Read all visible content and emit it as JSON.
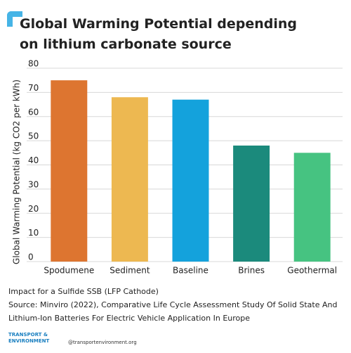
{
  "chart_data": {
    "type": "bar",
    "title": "Global Warming Potential depending on lithium carbonate source",
    "y_label": "Global Warming Potential (kg CO2 per kWh)",
    "categories": [
      "Spodumene",
      "Sediment",
      "Baseline",
      "Brines",
      "Geothermal"
    ],
    "values": [
      75,
      68,
      67,
      48,
      45
    ],
    "colors": [
      "#dd7530",
      "#edb851",
      "#14a2dc",
      "#1b8a7c",
      "#46c381"
    ],
    "ylim": [
      0,
      80
    ],
    "yticks": [
      0,
      10,
      20,
      30,
      40,
      50,
      60,
      70,
      80
    ],
    "grid": true,
    "note": "Impact for a Sulfide SSB (LFP Cathode)",
    "source": "Source: Minviro (2022), Comparative Life Cycle Assessment Study Of Solid State And Lithium-Ion Batteries For Electric Vehicle Application In Europe",
    "brand": [
      "TRANSPORT &",
      "ENVIRONMENT"
    ],
    "handle": "@transportenvironment.org"
  }
}
